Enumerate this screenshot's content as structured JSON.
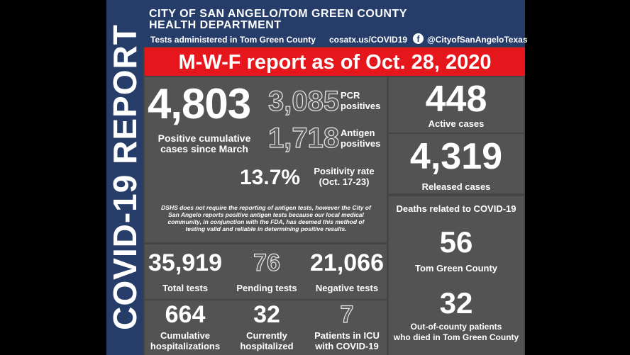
{
  "header": {
    "title_line1": "CITY OF SAN ANGELO/TOM GREEN COUNTY",
    "title_line2": "HEALTH DEPARTMENT",
    "subtitle": "Tests administered in Tom Green County",
    "website": "cosatx.us/COVID19",
    "facebook_icon": "f",
    "facebook_handle": "@CityofSanAngeloTexas"
  },
  "side_title": "COVID-19 REPORT",
  "banner": "M-W-F report as of Oct. 28, 2020",
  "cumulative": {
    "value": "4,803",
    "label_line1": "Positive cumulative",
    "label_line2": "cases since March"
  },
  "pcr": {
    "value": "3,085",
    "label_line1": "PCR",
    "label_line2": "positives"
  },
  "antigen": {
    "value": "1,718",
    "label_line1": "Antigen",
    "label_line2": "positives"
  },
  "positivity": {
    "value": "13.7%",
    "label_line1": "Positivity rate",
    "label_line2": "(Oct. 17-23)"
  },
  "note": {
    "line1": "DSHS does not require the reporting of antigen tests, however the City of",
    "line2": "San Angelo reports positive antigen tests because our local medical",
    "line3": "community, in conjunction with the FDA, has deemed this method of",
    "line4": "testing valid and reliable in determining positive results."
  },
  "active": {
    "value": "448",
    "label": "Active cases"
  },
  "released": {
    "value": "4,319",
    "label": "Released cases"
  },
  "tests": {
    "total": {
      "value": "35,919",
      "label": "Total tests"
    },
    "pending": {
      "value": "76",
      "label": "Pending tests"
    },
    "negative": {
      "value": "21,066",
      "label": "Negative tests"
    }
  },
  "hospital": {
    "cumulative": {
      "value": "664",
      "label_line1": "Cumulative",
      "label_line2": "hospitalizations"
    },
    "current": {
      "value": "32",
      "label_line1": "Currently",
      "label_line2": "hospitalized"
    },
    "icu": {
      "value": "7",
      "label_line1": "Patients in ICU",
      "label_line2": "with COVID-19"
    }
  },
  "deaths": {
    "heading": "Deaths related to COVID-19",
    "county_value": "56",
    "county_label": "Tom Green County",
    "out_value": "32",
    "out_label_line1": "Out-of-county patients",
    "out_label_line2": "who died in Tom Green County"
  }
}
